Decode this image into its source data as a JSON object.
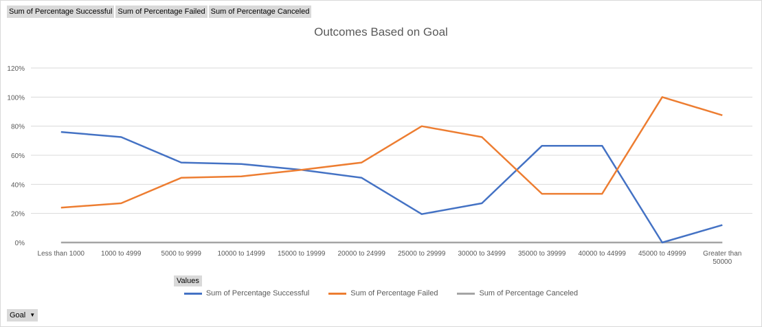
{
  "field_buttons": [
    "Sum of Percentage Successful",
    "Sum of Percentage Failed",
    "Sum of Percentage Canceled"
  ],
  "values_button": "Values",
  "goal_button": "Goal",
  "colors": {
    "successful": "#4472C4",
    "failed": "#ED7D31",
    "canceled": "#A5A5A5",
    "grid": "#d9d9d9",
    "text": "#595959"
  },
  "chart_data": {
    "type": "line",
    "title": "Outcomes Based on Goal",
    "categories": [
      "Less than 1000",
      "1000 to 4999",
      "5000 to 9999",
      "10000 to 14999",
      "15000 to 19999",
      "20000 to 24999",
      "25000 to 29999",
      "30000 to 34999",
      "35000 to 39999",
      "40000 to 44999",
      "45000 to 49999",
      "Greater than 50000"
    ],
    "series": [
      {
        "name": "Sum of Percentage Successful",
        "color": "#4472C4",
        "values": [
          0.76,
          0.725,
          0.55,
          0.54,
          0.5,
          0.445,
          0.195,
          0.27,
          0.665,
          0.665,
          0.0,
          0.12
        ]
      },
      {
        "name": "Sum of Percentage Failed",
        "color": "#ED7D31",
        "values": [
          0.24,
          0.27,
          0.445,
          0.455,
          0.5,
          0.55,
          0.8,
          0.725,
          0.335,
          0.335,
          1.0,
          0.875
        ]
      },
      {
        "name": "Sum of Percentage Canceled",
        "color": "#A5A5A5",
        "values": [
          0,
          0,
          0,
          0,
          0,
          0,
          0,
          0,
          0,
          0,
          0,
          0
        ]
      }
    ],
    "y_ticks": [
      "0%",
      "20%",
      "40%",
      "60%",
      "80%",
      "100%",
      "120%"
    ],
    "ylim": [
      0,
      1.2
    ],
    "grid": true,
    "legend_position": "bottom"
  }
}
